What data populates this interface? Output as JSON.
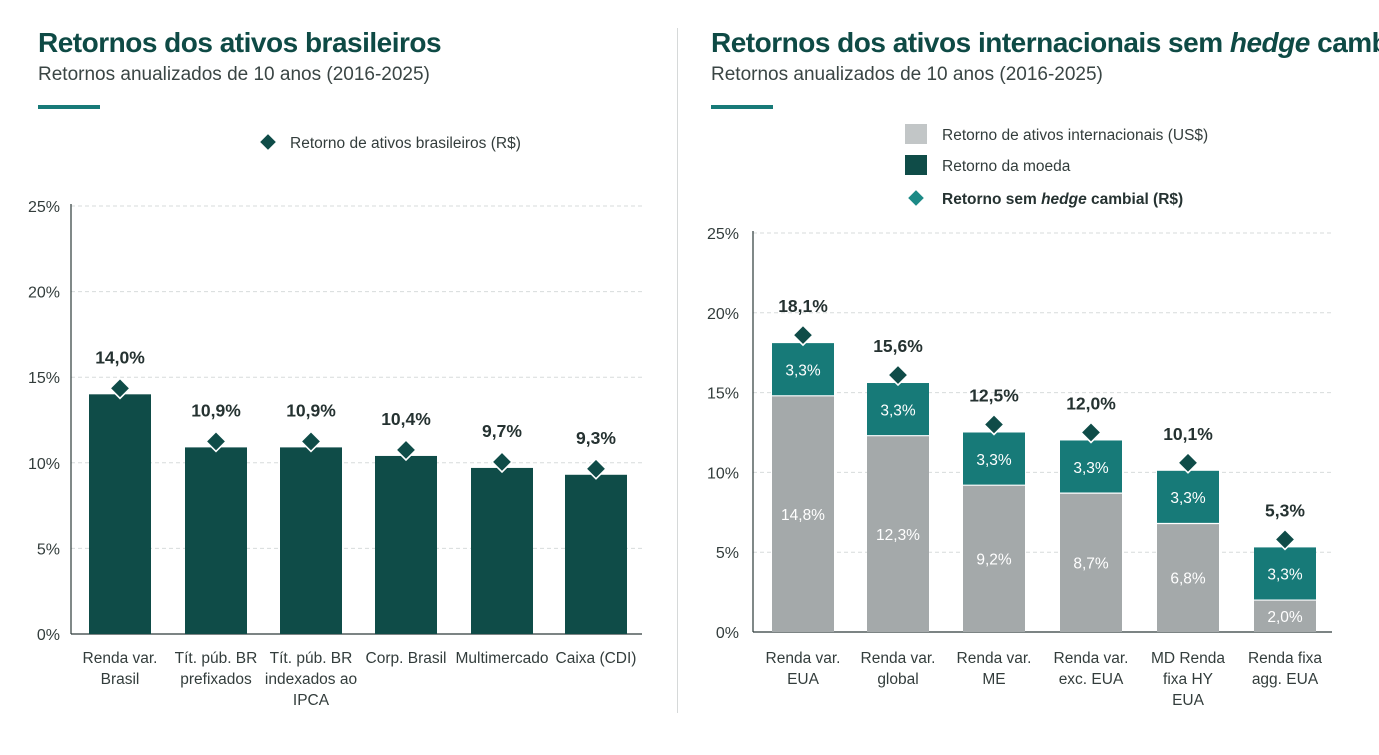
{
  "left": {
    "title": "Retornos dos ativos brasileiros",
    "subtitle": "Retornos anualizados de 10 anos (2016-2025)"
  },
  "right": {
    "title_pre": "Retornos dos ativos internacionais sem ",
    "title_em": "hedge",
    "title_post": " cambial",
    "subtitle": "Retornos anualizados de 10 anos (2016-2025)"
  },
  "colors": {
    "dark_green": "#0f4c48",
    "teal": "#177a78",
    "grey": "#a4a9aa",
    "diamond_left": "#0f4c48",
    "diamond_right": "#0f4c48",
    "legend_diamond_right": "#1c8a86"
  },
  "chart_data": [
    {
      "type": "bar",
      "title": "Retornos dos ativos brasileiros",
      "subtitle": "Retornos anualizados de 10 anos (2016-2025)",
      "legend": {
        "position": "top-center",
        "entries": [
          "Retorno de ativos brasileiros (R$)"
        ]
      },
      "ylim": [
        0,
        25
      ],
      "yticks": [
        0,
        5,
        10,
        15,
        20,
        25
      ],
      "ytick_labels": [
        "0%",
        "5%",
        "10%",
        "15%",
        "20%",
        "25%"
      ],
      "grid": true,
      "categories": [
        [
          "Renda var.",
          "Brasil"
        ],
        [
          "Tít. púb. BR",
          "prefixados"
        ],
        [
          "Tít. púb. BR",
          "indexados ao",
          "IPCA"
        ],
        [
          "Corp. Brasil"
        ],
        [
          "Multimercado"
        ],
        [
          "Caixa (CDI)"
        ]
      ],
      "values": [
        14.0,
        10.9,
        10.9,
        10.4,
        9.7,
        9.3
      ],
      "value_labels": [
        "14,0%",
        "10,9%",
        "10,9%",
        "10,4%",
        "9,7%",
        "9,3%"
      ]
    },
    {
      "type": "bar",
      "stacked": true,
      "title": "Retornos dos ativos internacionais sem hedge cambial",
      "subtitle": "Retornos anualizados de 10 anos (2016-2025)",
      "legend": {
        "position": "top-center",
        "entries": [
          {
            "label": "Retorno de ativos internacionais (US$)"
          },
          {
            "label": "Retorno da moeda"
          },
          {
            "label_pre": "Retorno sem ",
            "label_em": "hedge",
            "label_post": " cambial  (R$)"
          }
        ]
      },
      "ylim": [
        0,
        25
      ],
      "yticks": [
        0,
        5,
        10,
        15,
        20,
        25
      ],
      "ytick_labels": [
        "0%",
        "5%",
        "10%",
        "15%",
        "20%",
        "25%"
      ],
      "grid": true,
      "categories": [
        [
          "Renda var.",
          "EUA"
        ],
        [
          "Renda var.",
          "global"
        ],
        [
          "Renda var.",
          "ME"
        ],
        [
          "Renda var.",
          "exc. EUA"
        ],
        [
          "MD Renda",
          "fixa HY",
          "EUA"
        ],
        [
          "Renda fixa",
          "agg. EUA"
        ]
      ],
      "series": [
        {
          "name": "Retorno de ativos internacionais (US$)",
          "values": [
            14.8,
            12.3,
            9.2,
            8.7,
            6.8,
            2.0
          ],
          "labels": [
            "14,8%",
            "12,3%",
            "9,2%",
            "8,7%",
            "6,8%",
            "2,0%"
          ]
        },
        {
          "name": "Retorno da moeda",
          "values": [
            3.3,
            3.3,
            3.3,
            3.3,
            3.3,
            3.3
          ],
          "labels": [
            "3,3%",
            "3,3%",
            "3,3%",
            "3,3%",
            "3,3%",
            "3,3%"
          ]
        }
      ],
      "totals": [
        18.1,
        15.6,
        12.5,
        12.0,
        10.1,
        5.3
      ],
      "total_labels": [
        "18,1%",
        "15,6%",
        "12,5%",
        "12,0%",
        "10,1%",
        "5,3%"
      ]
    }
  ]
}
